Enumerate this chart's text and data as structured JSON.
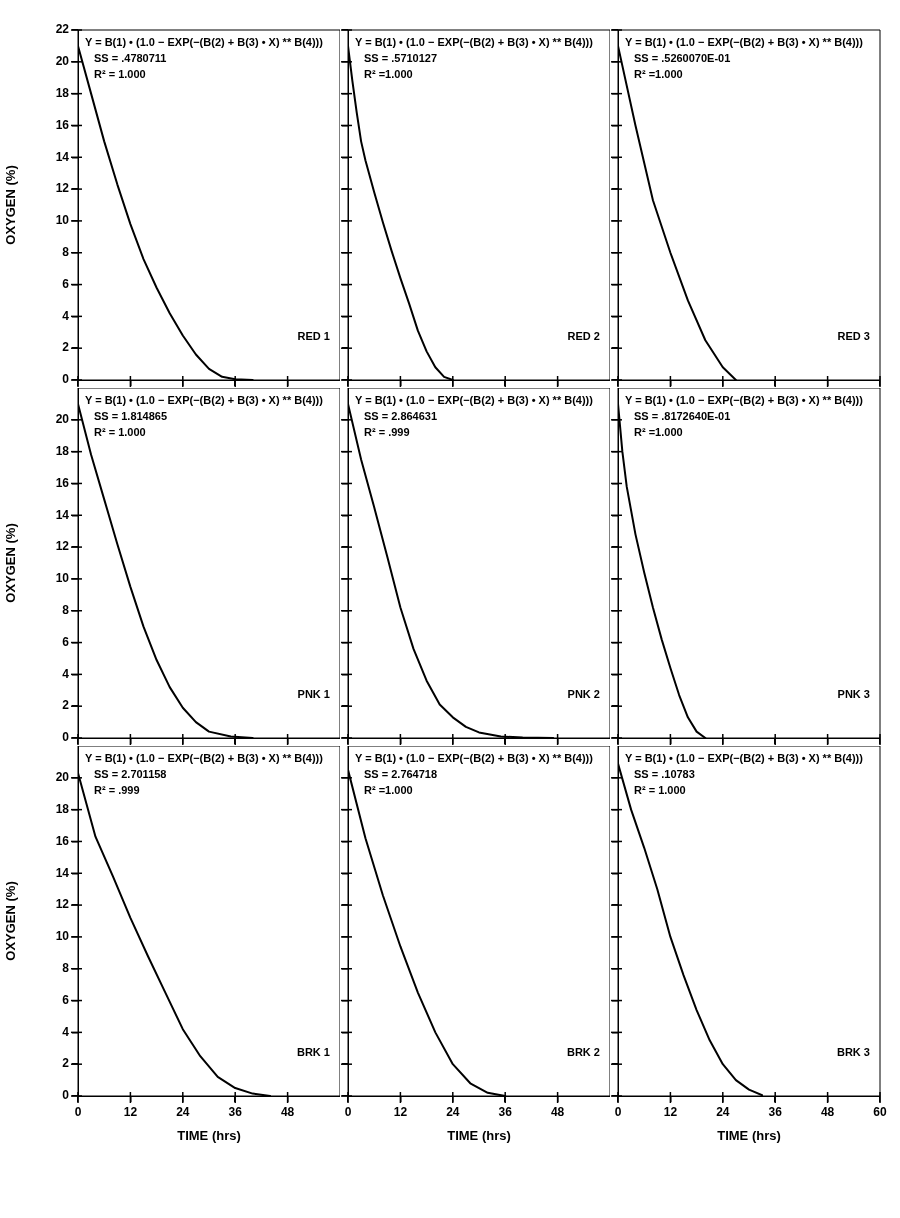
{
  "chart_data": [
    {
      "type": "line",
      "xlim": [
        0,
        60
      ],
      "xticks": [
        0,
        12,
        24,
        36,
        48
      ],
      "ylim": [
        0,
        22
      ],
      "yticks": [
        0,
        2,
        4,
        6,
        8,
        10,
        12,
        14,
        16,
        18,
        20,
        22
      ],
      "ylabel": "OXYGEN (%)",
      "tick_labels": "y",
      "grid": false,
      "legend": false,
      "marker": "none",
      "line_style": "solid",
      "annotations": [
        "Y = B(1) • (1.0 − EXP(−(B(2) + B(3) • X) ** B(4)))",
        "SS = .4780711",
        "R² = 1.000",
        "RED 1"
      ],
      "x": [
        0,
        3,
        6,
        9,
        12,
        15,
        18,
        21,
        24,
        27,
        30,
        33,
        36,
        40
      ],
      "series": [
        {
          "color": "#000000",
          "values": [
            21.0,
            18.0,
            15.0,
            12.3,
            9.8,
            7.6,
            5.8,
            4.2,
            2.8,
            1.6,
            0.7,
            0.2,
            0.05,
            0
          ]
        }
      ]
    },
    {
      "type": "line",
      "xlim": [
        0,
        60
      ],
      "xticks": [
        0,
        12,
        24,
        36,
        48
      ],
      "ylim": [
        0,
        22
      ],
      "yticks": [
        0,
        2,
        4,
        6,
        8,
        10,
        12,
        14,
        16,
        18,
        20,
        22
      ],
      "tick_labels": false,
      "grid": false,
      "legend": false,
      "marker": "none",
      "line_style": "solid",
      "annotations": [
        "Y = B(1) • (1.0 − EXP(−(B(2) + B(3) • X) ** B(4)))",
        "SS = .5710127",
        "R² =1.000",
        "RED 2"
      ],
      "x": [
        0,
        1,
        2,
        3,
        4,
        6,
        8,
        10,
        12,
        14,
        16,
        18,
        20,
        22,
        24
      ],
      "series": [
        {
          "color": "#000000",
          "values": [
            21.0,
            18.8,
            16.8,
            15.0,
            13.8,
            11.8,
            9.9,
            8.1,
            6.4,
            4.8,
            3.1,
            1.8,
            0.8,
            0.2,
            0
          ]
        }
      ]
    },
    {
      "type": "line",
      "xlim": [
        0,
        60
      ],
      "xticks": [
        0,
        12,
        24,
        36,
        48,
        60
      ],
      "ylim": [
        0,
        22
      ],
      "yticks": [
        0,
        2,
        4,
        6,
        8,
        10,
        12,
        14,
        16,
        18,
        20,
        22
      ],
      "tick_labels": false,
      "grid": false,
      "legend": false,
      "marker": "none",
      "line_style": "solid",
      "annotations": [
        "Y = B(1) • (1.0 − EXP(−(B(2) + B(3) • X) ** B(4)))",
        "SS = .5260070E-01",
        "R² =1.000",
        "RED 3"
      ],
      "x": [
        0,
        4,
        8,
        12,
        16,
        20,
        24,
        27
      ],
      "series": [
        {
          "color": "#000000",
          "values": [
            21.0,
            16.0,
            11.3,
            8.0,
            5.0,
            2.5,
            0.8,
            0
          ]
        }
      ]
    },
    {
      "type": "line",
      "xlim": [
        0,
        60
      ],
      "xticks": [
        0,
        12,
        24,
        36,
        48
      ],
      "ylim": [
        0,
        22
      ],
      "yticks": [
        0,
        2,
        4,
        6,
        8,
        10,
        12,
        14,
        16,
        18,
        20
      ],
      "ylabel": "OXYGEN (%)",
      "tick_labels": "y",
      "grid": false,
      "legend": false,
      "marker": "none",
      "line_style": "solid",
      "annotations": [
        "Y = B(1) • (1.0 − EXP(−(B(2) + B(3) • X) ** B(4)))",
        "SS = 1.814865",
        "R² = 1.000",
        "PNK 1"
      ],
      "x": [
        0,
        3,
        6,
        9,
        12,
        15,
        18,
        21,
        24,
        27,
        30,
        35,
        40
      ],
      "series": [
        {
          "color": "#000000",
          "values": [
            21.0,
            17.8,
            15.0,
            12.2,
            9.5,
            7.0,
            4.9,
            3.2,
            1.9,
            1.0,
            0.4,
            0.1,
            0
          ]
        }
      ]
    },
    {
      "type": "line",
      "xlim": [
        0,
        60
      ],
      "xticks": [
        0,
        12,
        24,
        36,
        48
      ],
      "ylim": [
        0,
        22
      ],
      "yticks": [
        0,
        2,
        4,
        6,
        8,
        10,
        12,
        14,
        16,
        18,
        20
      ],
      "tick_labels": false,
      "grid": false,
      "legend": false,
      "marker": "none",
      "line_style": "solid",
      "annotations": [
        "Y = B(1) • (1.0 − EXP(−(B(2) + B(3) • X) ** B(4)))",
        "SS = 2.864631",
        "R² = .999",
        "PNK 2"
      ],
      "x": [
        0,
        3,
        6,
        9,
        12,
        15,
        18,
        21,
        24,
        27,
        30,
        35,
        40,
        47
      ],
      "series": [
        {
          "color": "#000000",
          "values": [
            21.0,
            17.5,
            14.5,
            11.4,
            8.2,
            5.6,
            3.6,
            2.1,
            1.3,
            0.7,
            0.35,
            0.1,
            0.03,
            0
          ]
        }
      ]
    },
    {
      "type": "line",
      "xlim": [
        0,
        60
      ],
      "xticks": [
        0,
        12,
        24,
        36,
        48,
        60
      ],
      "ylim": [
        0,
        22
      ],
      "yticks": [
        0,
        2,
        4,
        6,
        8,
        10,
        12,
        14,
        16,
        18,
        20
      ],
      "tick_labels": false,
      "grid": false,
      "legend": false,
      "marker": "none",
      "line_style": "solid",
      "annotations": [
        "Y = B(1) • (1.0 − EXP(−(B(2) + B(3) • X) ** B(4)))",
        "SS = .8172640E-01",
        "R² =1.000",
        "PNK 3"
      ],
      "x": [
        0,
        1,
        2,
        4,
        6,
        8,
        10,
        12,
        14,
        16,
        18,
        20
      ],
      "series": [
        {
          "color": "#000000",
          "values": [
            21.0,
            18.0,
            15.8,
            12.8,
            10.4,
            8.2,
            6.2,
            4.4,
            2.7,
            1.3,
            0.4,
            0
          ]
        }
      ]
    },
    {
      "type": "line",
      "xlim": [
        0,
        60
      ],
      "xticks": [
        0,
        12,
        24,
        36,
        48
      ],
      "ylim": [
        0,
        22
      ],
      "yticks": [
        0,
        2,
        4,
        6,
        8,
        10,
        12,
        14,
        16,
        18,
        20
      ],
      "xlabel": "TIME (hrs)",
      "ylabel": "OXYGEN (%)",
      "grid": false,
      "legend": false,
      "marker": "none",
      "line_style": "solid",
      "annotations": [
        "Y = B(1) • (1.0 − EXP(−(B(2) + B(3) • X) ** B(4)))",
        "SS = 2.701158",
        "R² = .999",
        "BRK 1"
      ],
      "x": [
        0,
        4,
        8,
        12,
        16,
        20,
        24,
        28,
        32,
        36,
        40,
        44
      ],
      "series": [
        {
          "color": "#000000",
          "values": [
            20.3,
            16.3,
            13.8,
            11.2,
            8.8,
            6.5,
            4.2,
            2.5,
            1.2,
            0.5,
            0.15,
            0
          ]
        }
      ]
    },
    {
      "type": "line",
      "xlim": [
        0,
        60
      ],
      "xticks": [
        0,
        12,
        24,
        36,
        48
      ],
      "ylim": [
        0,
        22
      ],
      "yticks": [
        0,
        2,
        4,
        6,
        8,
        10,
        12,
        14,
        16,
        18,
        20
      ],
      "xlabel": "TIME (hrs)",
      "tick_labels": "x",
      "grid": false,
      "legend": false,
      "marker": "none",
      "line_style": "solid",
      "annotations": [
        "Y = B(1) • (1.0 − EXP(−(B(2) + B(3) • X) ** B(4)))",
        "SS = 2.764718",
        "R² =1.000",
        "BRK 2"
      ],
      "x": [
        0,
        4,
        8,
        12,
        16,
        20,
        24,
        28,
        32,
        36
      ],
      "series": [
        {
          "color": "#000000",
          "values": [
            20.5,
            16.2,
            12.6,
            9.4,
            6.5,
            4.0,
            2.0,
            0.8,
            0.2,
            0
          ]
        }
      ]
    },
    {
      "type": "line",
      "xlim": [
        0,
        60
      ],
      "xticks": [
        0,
        12,
        24,
        36,
        48,
        60
      ],
      "ylim": [
        0,
        22
      ],
      "yticks": [
        0,
        2,
        4,
        6,
        8,
        10,
        12,
        14,
        16,
        18,
        20
      ],
      "xlabel": "TIME (hrs)",
      "tick_labels": "x",
      "grid": false,
      "legend": false,
      "marker": "none",
      "line_style": "solid",
      "annotations": [
        "Y = B(1) • (1.0 − EXP(−(B(2) + B(3) • X) ** B(4)))",
        "SS = .10783",
        "R² = 1.000",
        "BRK 3"
      ],
      "x": [
        0,
        3,
        6,
        9,
        12,
        15,
        18,
        21,
        24,
        27,
        30,
        33
      ],
      "series": [
        {
          "color": "#000000",
          "values": [
            20.9,
            18.0,
            15.6,
            13.0,
            10.0,
            7.6,
            5.4,
            3.5,
            2.0,
            1.0,
            0.4,
            0.05
          ]
        }
      ]
    }
  ]
}
